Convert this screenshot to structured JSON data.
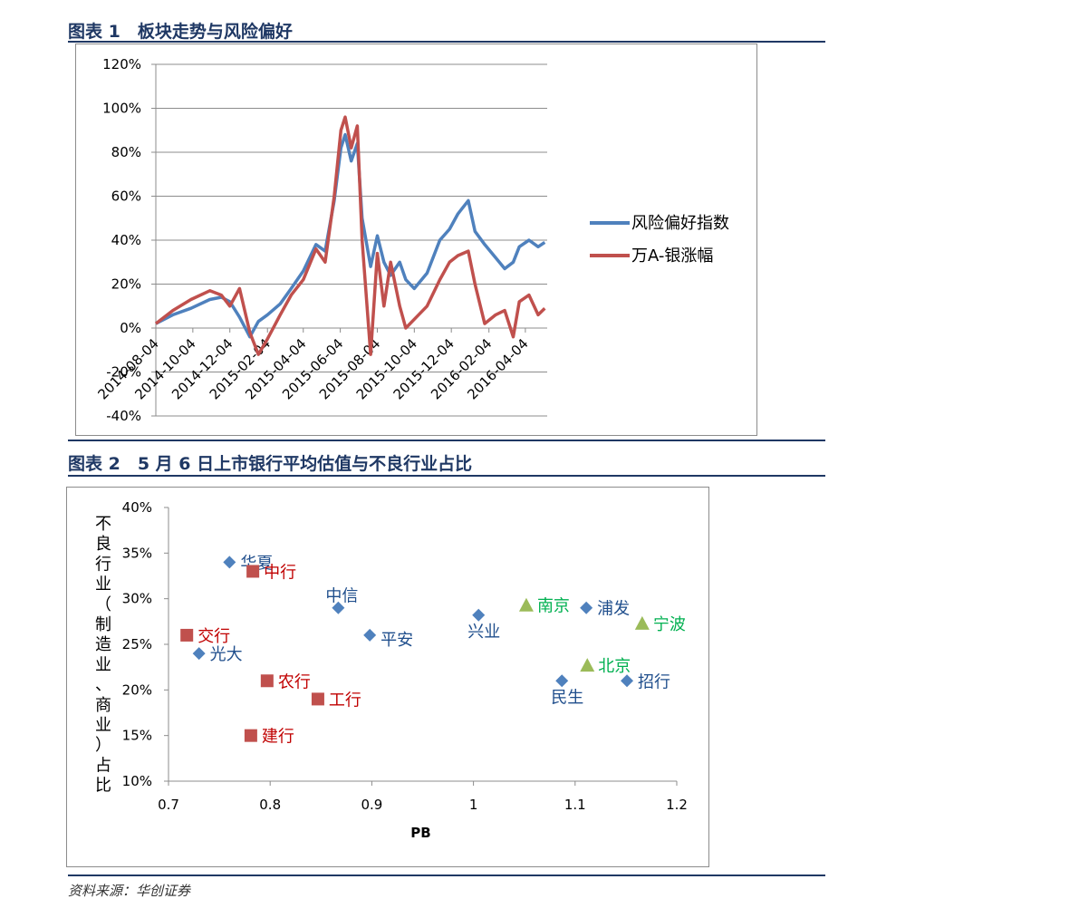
{
  "figure1": {
    "caption": "图表 1　板块走势与风险偏好"
  },
  "figure2": {
    "caption": "图表 2　5 月 6 日上市银行平均估值与不良行业占比"
  },
  "source": "资料来源：华创证券",
  "chart_data": [
    {
      "type": "line",
      "title": "",
      "xlabel": "",
      "ylabel": "",
      "ylim": [
        -0.4,
        1.2
      ],
      "yticks": [
        "120%",
        "100%",
        "80%",
        "60%",
        "40%",
        "20%",
        "0%",
        "-20%",
        "-40%"
      ],
      "yticks_values": [
        1.2,
        1.0,
        0.8,
        0.6,
        0.4,
        0.2,
        0.0,
        -0.2,
        -0.4
      ],
      "xlim": [
        "2014-08-04",
        "2016-05-10"
      ],
      "xticks": [
        "2014-08-04",
        "2014-10-04",
        "2014-12-04",
        "2015-02-04",
        "2015-04-04",
        "2015-06-04",
        "2015-08-04",
        "2015-10-04",
        "2015-12-04",
        "2016-02-04",
        "2016-04-04"
      ],
      "grid": true,
      "legend": "right",
      "series": [
        {
          "name": "风险偏好指数",
          "color": "#4f81bd",
          "points": [
            [
              "2014-08-04",
              0.02
            ],
            [
              "2014-09-01",
              0.06
            ],
            [
              "2014-10-01",
              0.09
            ],
            [
              "2014-11-01",
              0.13
            ],
            [
              "2014-11-20",
              0.14
            ],
            [
              "2014-12-04",
              0.12
            ],
            [
              "2014-12-20",
              0.05
            ],
            [
              "2015-01-06",
              -0.04
            ],
            [
              "2015-01-20",
              0.03
            ],
            [
              "2015-02-04",
              0.06
            ],
            [
              "2015-02-25",
              0.11
            ],
            [
              "2015-03-15",
              0.18
            ],
            [
              "2015-04-04",
              0.26
            ],
            [
              "2015-04-25",
              0.38
            ],
            [
              "2015-05-10",
              0.35
            ],
            [
              "2015-05-25",
              0.58
            ],
            [
              "2015-06-05",
              0.82
            ],
            [
              "2015-06-12",
              0.88
            ],
            [
              "2015-06-22",
              0.76
            ],
            [
              "2015-07-02",
              0.84
            ],
            [
              "2015-07-10",
              0.5
            ],
            [
              "2015-07-24",
              0.28
            ],
            [
              "2015-08-04",
              0.42
            ],
            [
              "2015-08-15",
              0.3
            ],
            [
              "2015-08-26",
              0.24
            ],
            [
              "2015-09-10",
              0.3
            ],
            [
              "2015-09-20",
              0.22
            ],
            [
              "2015-10-04",
              0.18
            ],
            [
              "2015-10-25",
              0.25
            ],
            [
              "2015-11-15",
              0.4
            ],
            [
              "2015-12-01",
              0.45
            ],
            [
              "2015-12-15",
              0.52
            ],
            [
              "2016-01-01",
              0.58
            ],
            [
              "2016-01-12",
              0.44
            ],
            [
              "2016-01-28",
              0.38
            ],
            [
              "2016-02-15",
              0.32
            ],
            [
              "2016-03-01",
              0.27
            ],
            [
              "2016-03-15",
              0.3
            ],
            [
              "2016-03-25",
              0.37
            ],
            [
              "2016-04-10",
              0.4
            ],
            [
              "2016-04-25",
              0.37
            ],
            [
              "2016-05-06",
              0.39
            ]
          ]
        },
        {
          "name": "万A-银涨幅",
          "color": "#c0504d",
          "points": [
            [
              "2014-08-04",
              0.02
            ],
            [
              "2014-09-01",
              0.08
            ],
            [
              "2014-10-01",
              0.13
            ],
            [
              "2014-11-01",
              0.17
            ],
            [
              "2014-11-20",
              0.15
            ],
            [
              "2014-12-04",
              0.1
            ],
            [
              "2014-12-20",
              0.18
            ],
            [
              "2015-01-06",
              -0.02
            ],
            [
              "2015-01-20",
              -0.12
            ],
            [
              "2015-02-04",
              -0.05
            ],
            [
              "2015-02-25",
              0.06
            ],
            [
              "2015-03-15",
              0.15
            ],
            [
              "2015-04-04",
              0.22
            ],
            [
              "2015-04-25",
              0.36
            ],
            [
              "2015-05-10",
              0.3
            ],
            [
              "2015-05-25",
              0.6
            ],
            [
              "2015-06-05",
              0.9
            ],
            [
              "2015-06-12",
              0.96
            ],
            [
              "2015-06-22",
              0.82
            ],
            [
              "2015-07-02",
              0.92
            ],
            [
              "2015-07-10",
              0.4
            ],
            [
              "2015-07-24",
              -0.12
            ],
            [
              "2015-08-04",
              0.34
            ],
            [
              "2015-08-15",
              0.1
            ],
            [
              "2015-08-26",
              0.3
            ],
            [
              "2015-09-10",
              0.1
            ],
            [
              "2015-09-20",
              0.0
            ],
            [
              "2015-10-04",
              0.04
            ],
            [
              "2015-10-25",
              0.1
            ],
            [
              "2015-11-15",
              0.22
            ],
            [
              "2015-12-01",
              0.3
            ],
            [
              "2015-12-15",
              0.33
            ],
            [
              "2016-01-01",
              0.35
            ],
            [
              "2016-01-12",
              0.2
            ],
            [
              "2016-01-28",
              0.02
            ],
            [
              "2016-02-15",
              0.06
            ],
            [
              "2016-03-01",
              0.08
            ],
            [
              "2016-03-15",
              -0.04
            ],
            [
              "2016-03-25",
              0.12
            ],
            [
              "2016-04-10",
              0.15
            ],
            [
              "2016-04-25",
              0.06
            ],
            [
              "2016-05-06",
              0.09
            ]
          ]
        }
      ]
    },
    {
      "type": "scatter",
      "title": "",
      "xlabel": "PB",
      "ylabel": "不良行业（制造业、商业）占比",
      "xlim": [
        0.7,
        1.2
      ],
      "ylim": [
        0.1,
        0.4
      ],
      "xticks": [
        "0.7",
        "0.8",
        "0.9",
        "1",
        "1.1",
        "1.2"
      ],
      "xticks_values": [
        0.7,
        0.8,
        0.9,
        1.0,
        1.1,
        1.2
      ],
      "yticks": [
        "40%",
        "35%",
        "30%",
        "25%",
        "20%",
        "15%",
        "10%"
      ],
      "yticks_values": [
        0.4,
        0.35,
        0.3,
        0.25,
        0.2,
        0.15,
        0.1
      ],
      "grid": false,
      "series": [
        {
          "group": "blue",
          "marker": "diamond",
          "color": "#4f81bd",
          "label_color": "#1f4e8c",
          "points": [
            {
              "label": "华夏",
              "x": 0.76,
              "y": 0.34,
              "pos": "right"
            },
            {
              "label": "中信",
              "x": 0.867,
              "y": 0.29,
              "pos": "above"
            },
            {
              "label": "平安",
              "x": 0.898,
              "y": 0.26,
              "pos": "right-below"
            },
            {
              "label": "兴业",
              "x": 1.005,
              "y": 0.282,
              "pos": "below"
            },
            {
              "label": "浦发",
              "x": 1.111,
              "y": 0.29,
              "pos": "right"
            },
            {
              "label": "光大",
              "x": 0.73,
              "y": 0.24,
              "pos": "right"
            },
            {
              "label": "民生",
              "x": 1.087,
              "y": 0.21,
              "pos": "below"
            },
            {
              "label": "招行",
              "x": 1.151,
              "y": 0.21,
              "pos": "right"
            }
          ]
        },
        {
          "group": "red",
          "marker": "square",
          "color": "#c0504d",
          "label_color": "#c00000",
          "points": [
            {
              "label": "中行",
              "x": 0.783,
              "y": 0.33,
              "pos": "right"
            },
            {
              "label": "交行",
              "x": 0.718,
              "y": 0.26,
              "pos": "right"
            },
            {
              "label": "农行",
              "x": 0.797,
              "y": 0.21,
              "pos": "right"
            },
            {
              "label": "工行",
              "x": 0.847,
              "y": 0.19,
              "pos": "right"
            },
            {
              "label": "建行",
              "x": 0.781,
              "y": 0.15,
              "pos": "right"
            }
          ]
        },
        {
          "group": "green",
          "marker": "triangle",
          "color": "#9bbb59",
          "label_color": "#00b050",
          "points": [
            {
              "label": "南京",
              "x": 1.052,
              "y": 0.293,
              "pos": "right"
            },
            {
              "label": "宁波",
              "x": 1.166,
              "y": 0.273,
              "pos": "right"
            },
            {
              "label": "北京",
              "x": 1.112,
              "y": 0.227,
              "pos": "right"
            }
          ]
        }
      ]
    }
  ]
}
